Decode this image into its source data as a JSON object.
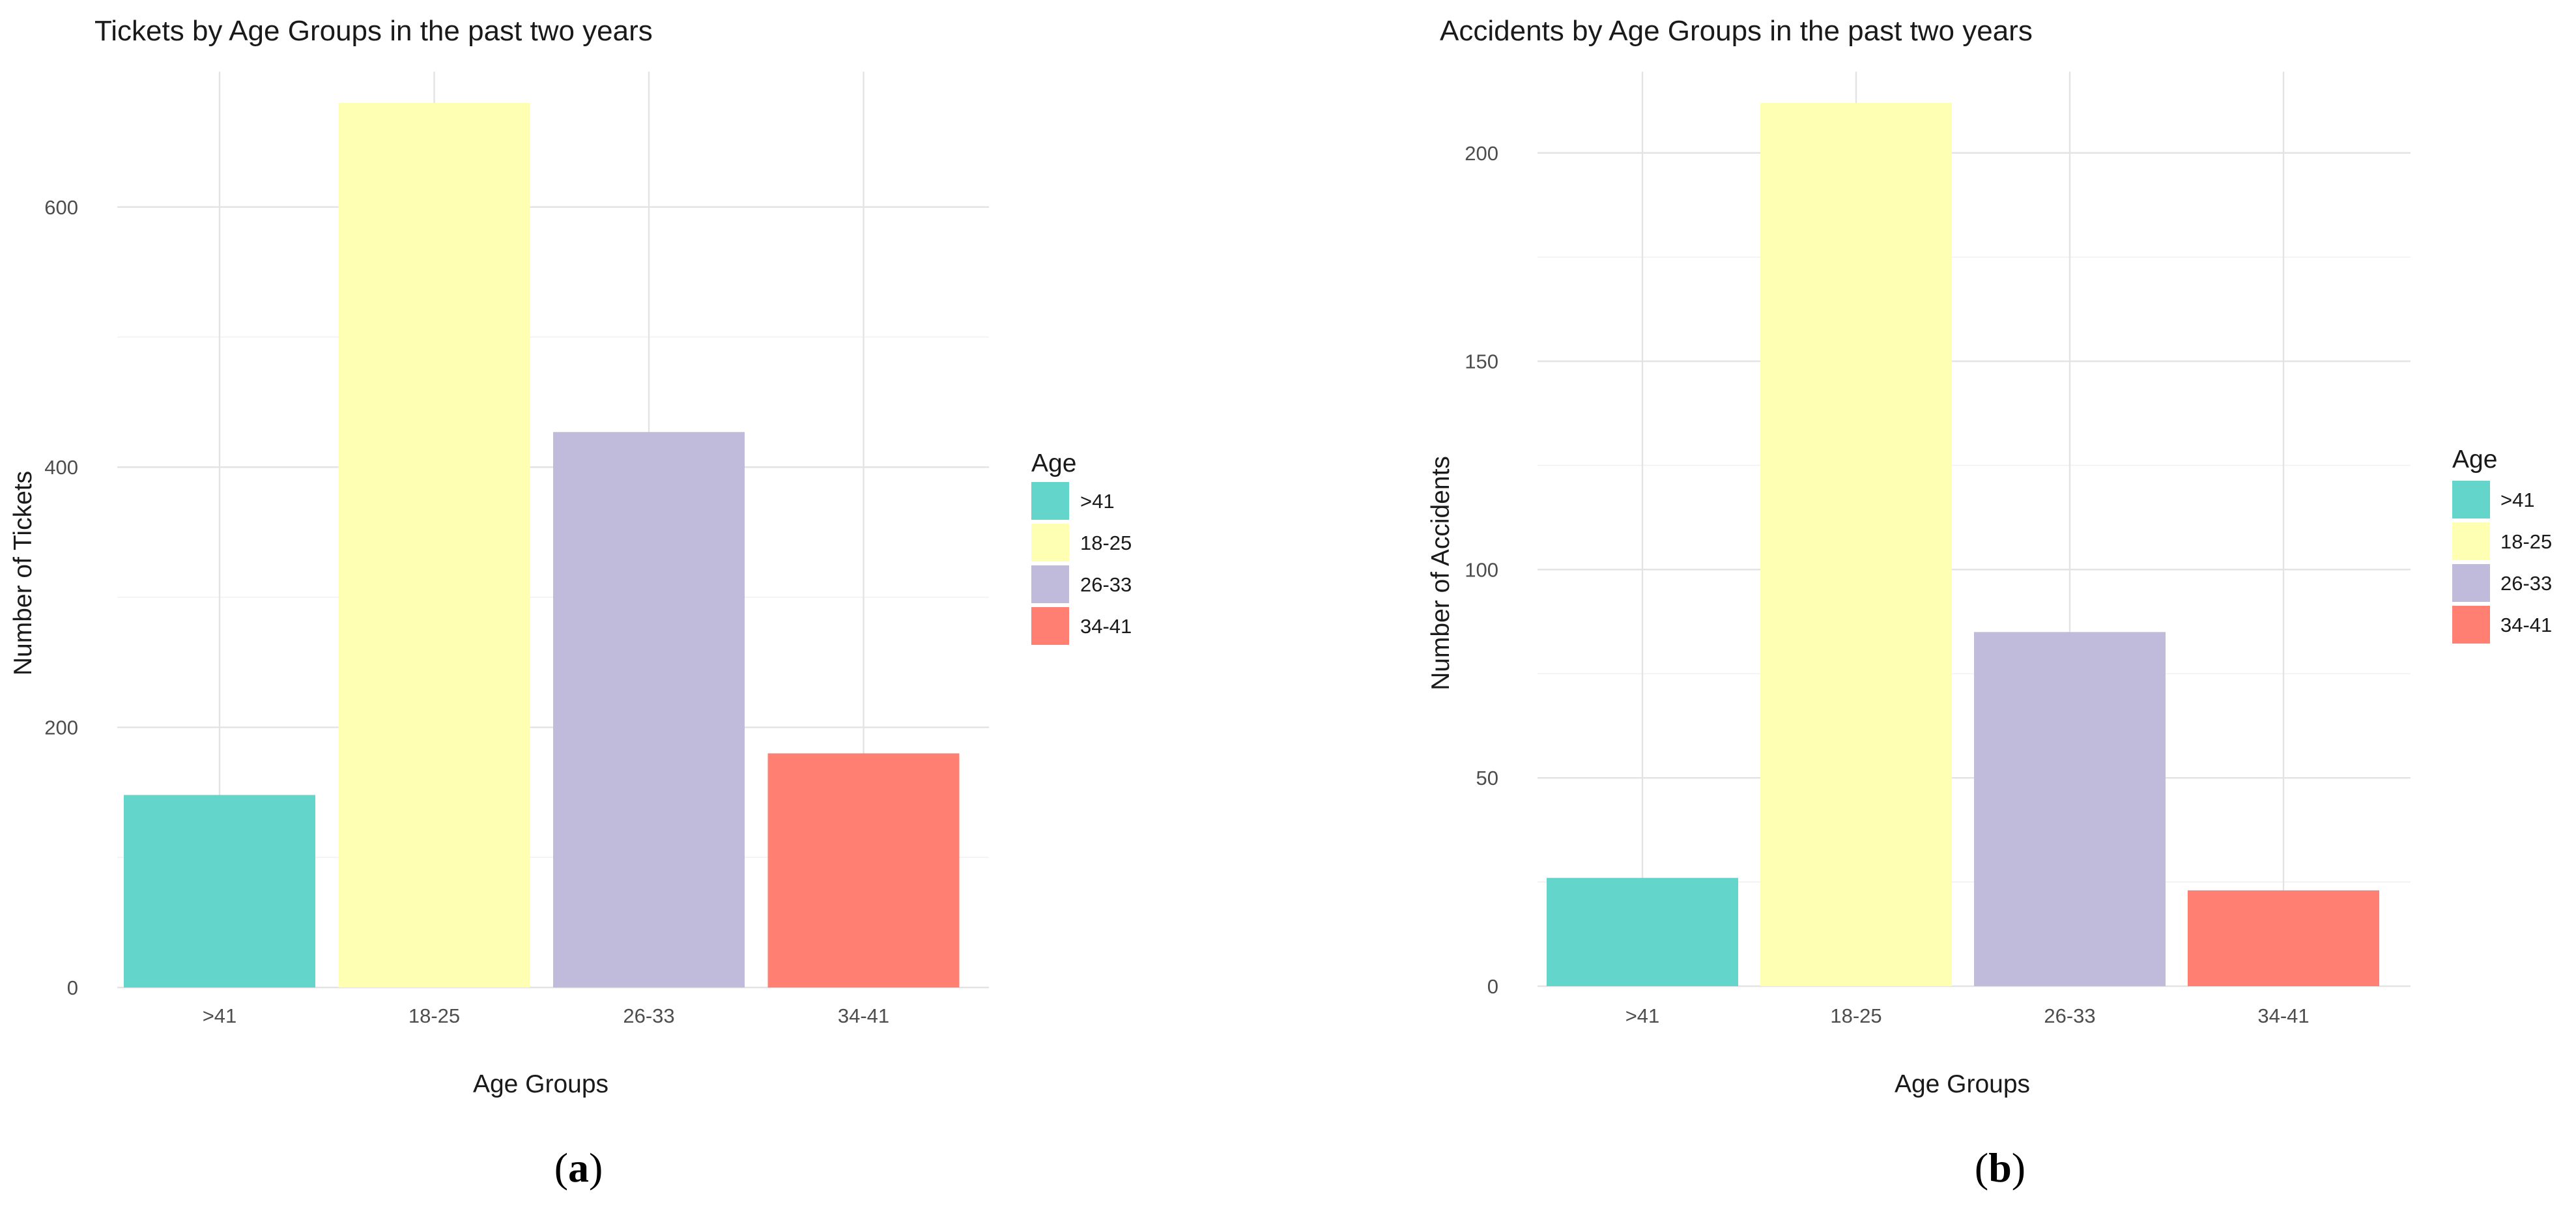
{
  "chart_data": [
    {
      "type": "bar",
      "title": "Tickets by Age Groups in the past two years",
      "xlabel": "Age Groups",
      "ylabel": "Number of Tickets",
      "categories": [
        ">41",
        "18-25",
        "26-33",
        "34-41"
      ],
      "values": [
        148,
        680,
        427,
        180
      ],
      "colors": [
        "#64d5ca",
        "#ffffb3",
        "#c0bbdb",
        "#ff8072"
      ],
      "ylim": [
        0,
        680
      ],
      "yticks": [
        0,
        200,
        400,
        600
      ],
      "yticks_minor": [
        100,
        300,
        500
      ],
      "grid": true,
      "legend": {
        "title": "Age",
        "position": "right",
        "labels": [
          ">41",
          "18-25",
          "26-33",
          "34-41"
        ]
      },
      "caption": "a"
    },
    {
      "type": "bar",
      "title": "Accidents by Age Groups in the past two years",
      "xlabel": "Age Groups",
      "ylabel": "Number of Accidents",
      "categories": [
        ">41",
        "18-25",
        "26-33",
        "34-41"
      ],
      "values": [
        26,
        212,
        85,
        23
      ],
      "colors": [
        "#64d5ca",
        "#ffffb3",
        "#c0bbdb",
        "#ff8072"
      ],
      "ylim": [
        0,
        212
      ],
      "yticks": [
        0,
        50,
        100,
        150,
        200
      ],
      "yticks_minor": [
        25,
        75,
        125,
        175
      ],
      "grid": true,
      "legend": {
        "title": "Age",
        "position": "right",
        "labels": [
          ">41",
          "18-25",
          "26-33",
          "34-41"
        ]
      },
      "caption": "b"
    }
  ]
}
